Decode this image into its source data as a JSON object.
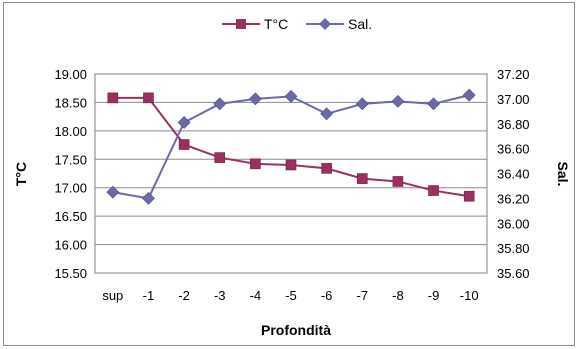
{
  "chart_data": {
    "type": "line",
    "categories": [
      "sup",
      "-1",
      "-2",
      "-3",
      "-4",
      "-5",
      "-6",
      "-7",
      "-8",
      "-9",
      "-10"
    ],
    "xlabel": "Profondità",
    "ylabel_left": "T°C",
    "ylabel_right": "Sal.",
    "ylim_left": [
      15.5,
      19.0
    ],
    "ylim_right": [
      35.6,
      37.2
    ],
    "yticks_left": [
      "15.50",
      "16.00",
      "16.50",
      "17.00",
      "17.50",
      "18.00",
      "18.50",
      "19.00"
    ],
    "yticks_right": [
      "35.60",
      "35.80",
      "36.00",
      "36.20",
      "36.40",
      "36.60",
      "36.80",
      "37.00",
      "37.20"
    ],
    "grid": true,
    "legend_position": "top",
    "series": [
      {
        "name": "T°C",
        "axis": "left",
        "color": "#9b3060",
        "marker": "square",
        "values": [
          18.58,
          18.58,
          17.76,
          17.53,
          17.42,
          17.4,
          17.34,
          17.16,
          17.11,
          16.95,
          16.85
        ]
      },
      {
        "name": "Sal.",
        "axis": "right",
        "color": "#6a6aa6",
        "marker": "diamond",
        "values": [
          36.25,
          36.2,
          36.81,
          36.96,
          37.0,
          37.02,
          36.88,
          36.96,
          36.98,
          36.96,
          37.03
        ]
      }
    ]
  }
}
